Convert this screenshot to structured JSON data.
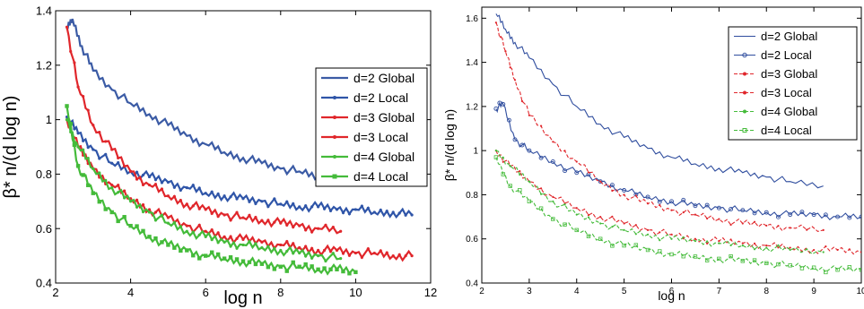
{
  "chart_data": [
    {
      "type": "line",
      "xlabel": "log n",
      "ylabel": "β* n/(d log n)",
      "xlim": [
        2,
        12
      ],
      "ylim": [
        0.4,
        1.4
      ],
      "xticks": [
        2,
        4,
        6,
        8,
        10,
        12
      ],
      "yticks": [
        0.4,
        0.6,
        0.8,
        1,
        1.2,
        1.4
      ],
      "xtick_labels": [
        "2",
        "4",
        "6",
        "8",
        "10",
        "12"
      ],
      "ytick_labels": [
        "0.4",
        "0.6",
        "0.8",
        "1",
        "1.2",
        "1.4"
      ],
      "grid": false,
      "legend_position": "top-right",
      "series": [
        {
          "name": "d=2 Global",
          "color": "#3b5ba5",
          "marker": "none",
          "points": [
            [
              2.3,
              1.33
            ],
            [
              2.45,
              1.37
            ],
            [
              2.7,
              1.27
            ],
            [
              3,
              1.18
            ],
            [
              3.5,
              1.11
            ],
            [
              4,
              1.06
            ],
            [
              4.5,
              1.02
            ],
            [
              5,
              0.98
            ],
            [
              5.5,
              0.94
            ],
            [
              6,
              0.91
            ],
            [
              6.5,
              0.88
            ],
            [
              7,
              0.86
            ],
            [
              7.5,
              0.84
            ],
            [
              8,
              0.82
            ],
            [
              8.5,
              0.81
            ],
            [
              9,
              0.79
            ],
            [
              9.6,
              0.77
            ]
          ]
        },
        {
          "name": "d=2 Local",
          "color": "#2f55a8",
          "marker": "dot",
          "points": [
            [
              2.3,
              1.01
            ],
            [
              2.6,
              0.95
            ],
            [
              3,
              0.89
            ],
            [
              3.5,
              0.84
            ],
            [
              4,
              0.81
            ],
            [
              4.5,
              0.79
            ],
            [
              5,
              0.77
            ],
            [
              5.5,
              0.75
            ],
            [
              6,
              0.73
            ],
            [
              6.5,
              0.72
            ],
            [
              7,
              0.71
            ],
            [
              7.5,
              0.7
            ],
            [
              8,
              0.69
            ],
            [
              8.5,
              0.68
            ],
            [
              9,
              0.68
            ],
            [
              9.5,
              0.67
            ],
            [
              10,
              0.67
            ],
            [
              10.5,
              0.66
            ],
            [
              11,
              0.66
            ],
            [
              11.5,
              0.65
            ]
          ]
        },
        {
          "name": "d=3 Global",
          "color": "#e0262b",
          "marker": "dot",
          "points": [
            [
              2.3,
              1.34
            ],
            [
              2.6,
              1.12
            ],
            [
              3,
              0.98
            ],
            [
              3.5,
              0.89
            ],
            [
              4,
              0.81
            ],
            [
              4.5,
              0.76
            ],
            [
              5,
              0.72
            ],
            [
              5.5,
              0.69
            ],
            [
              6,
              0.67
            ],
            [
              6.5,
              0.65
            ],
            [
              7,
              0.64
            ],
            [
              7.5,
              0.63
            ],
            [
              8,
              0.62
            ],
            [
              8.5,
              0.61
            ],
            [
              9,
              0.6
            ],
            [
              9.6,
              0.59
            ]
          ]
        },
        {
          "name": "d=3 Local",
          "color": "#e0262b",
          "marker": "dot",
          "points": [
            [
              2.3,
              1.0
            ],
            [
              2.6,
              0.9
            ],
            [
              3,
              0.82
            ],
            [
              3.5,
              0.76
            ],
            [
              4,
              0.71
            ],
            [
              4.5,
              0.67
            ],
            [
              5,
              0.64
            ],
            [
              5.5,
              0.61
            ],
            [
              6,
              0.59
            ],
            [
              6.5,
              0.57
            ],
            [
              7,
              0.56
            ],
            [
              7.5,
              0.55
            ],
            [
              8,
              0.54
            ],
            [
              8.5,
              0.53
            ],
            [
              9,
              0.52
            ],
            [
              9.5,
              0.52
            ],
            [
              10,
              0.51
            ],
            [
              10.5,
              0.51
            ],
            [
              11,
              0.5
            ],
            [
              11.5,
              0.5
            ]
          ]
        },
        {
          "name": "d=4 Global",
          "color": "#44bb3a",
          "marker": "dot",
          "points": [
            [
              2.3,
              1.0
            ],
            [
              2.6,
              0.9
            ],
            [
              3,
              0.82
            ],
            [
              3.5,
              0.75
            ],
            [
              4,
              0.7
            ],
            [
              4.5,
              0.66
            ],
            [
              5,
              0.62
            ],
            [
              5.5,
              0.59
            ],
            [
              6,
              0.57
            ],
            [
              6.5,
              0.55
            ],
            [
              7,
              0.54
            ],
            [
              7.5,
              0.53
            ],
            [
              8,
              0.52
            ],
            [
              8.5,
              0.51
            ],
            [
              9,
              0.5
            ],
            [
              9.6,
              0.49
            ]
          ]
        },
        {
          "name": "d=4 Local",
          "color": "#44bb3a",
          "marker": "square",
          "points": [
            [
              2.3,
              1.05
            ],
            [
              2.6,
              0.83
            ],
            [
              3,
              0.73
            ],
            [
              3.5,
              0.66
            ],
            [
              4,
              0.61
            ],
            [
              4.5,
              0.57
            ],
            [
              5,
              0.54
            ],
            [
              5.5,
              0.52
            ],
            [
              6,
              0.5
            ],
            [
              6.5,
              0.49
            ],
            [
              7,
              0.48
            ],
            [
              7.5,
              0.47
            ],
            [
              8,
              0.46
            ],
            [
              8.5,
              0.46
            ],
            [
              9,
              0.45
            ],
            [
              9.5,
              0.45
            ],
            [
              10,
              0.44
            ]
          ]
        }
      ]
    },
    {
      "type": "line",
      "xlabel": "log n",
      "ylabel": "β* n/(d log n)",
      "xlim": [
        2,
        10
      ],
      "ylim": [
        0.4,
        1.65
      ],
      "xticks": [
        2,
        3,
        4,
        5,
        6,
        7,
        8,
        9,
        10
      ],
      "yticks": [
        0.4,
        0.6,
        0.8,
        1,
        1.2,
        1.4,
        1.6
      ],
      "xtick_labels": [
        "2",
        "3",
        "4",
        "5",
        "6",
        "7",
        "8",
        "9",
        "10"
      ],
      "ytick_labels": [
        "0.4",
        "0.6",
        "0.8",
        "1",
        "1.2",
        "1.4",
        "1.6"
      ],
      "grid": false,
      "legend_position": "top-right",
      "series": [
        {
          "name": "d=2 Global",
          "color": "#2f4d9e",
          "marker": "none",
          "dash": "none",
          "points": [
            [
              2.3,
              1.62
            ],
            [
              2.5,
              1.55
            ],
            [
              2.7,
              1.49
            ],
            [
              3,
              1.42
            ],
            [
              3.5,
              1.3
            ],
            [
              4,
              1.2
            ],
            [
              4.5,
              1.12
            ],
            [
              5,
              1.06
            ],
            [
              5.5,
              1.01
            ],
            [
              6,
              0.97
            ],
            [
              6.5,
              0.94
            ],
            [
              7,
              0.92
            ],
            [
              7.5,
              0.9
            ],
            [
              8,
              0.88
            ],
            [
              8.5,
              0.86
            ],
            [
              9.2,
              0.84
            ]
          ]
        },
        {
          "name": "d=2 Local",
          "color": "#2f4d9e",
          "marker": "circle",
          "dash": "none",
          "points": [
            [
              2.3,
              1.19
            ],
            [
              2.45,
              1.21
            ],
            [
              2.7,
              1.05
            ],
            [
              3,
              1.0
            ],
            [
              3.5,
              0.95
            ],
            [
              4,
              0.9
            ],
            [
              4.5,
              0.86
            ],
            [
              5,
              0.82
            ],
            [
              5.5,
              0.79
            ],
            [
              6,
              0.77
            ],
            [
              6.5,
              0.75
            ],
            [
              7,
              0.74
            ],
            [
              7.5,
              0.73
            ],
            [
              8,
              0.72
            ],
            [
              8.5,
              0.71
            ],
            [
              9,
              0.71
            ],
            [
              9.5,
              0.7
            ],
            [
              10,
              0.7
            ]
          ]
        },
        {
          "name": "d=3 Global",
          "color": "#e0262b",
          "marker": "dot",
          "dash": "4,2",
          "points": [
            [
              2.3,
              1.58
            ],
            [
              2.5,
              1.45
            ],
            [
              2.7,
              1.32
            ],
            [
              3,
              1.16
            ],
            [
              3.5,
              1.04
            ],
            [
              4,
              0.95
            ],
            [
              4.5,
              0.86
            ],
            [
              5,
              0.8
            ],
            [
              5.5,
              0.76
            ],
            [
              6,
              0.73
            ],
            [
              6.5,
              0.71
            ],
            [
              7,
              0.69
            ],
            [
              7.5,
              0.67
            ],
            [
              8,
              0.66
            ],
            [
              8.5,
              0.65
            ],
            [
              9.2,
              0.64
            ]
          ]
        },
        {
          "name": "d=3 Local",
          "color": "#e0262b",
          "marker": "dot",
          "dash": "4,2",
          "points": [
            [
              2.3,
              1.0
            ],
            [
              2.6,
              0.93
            ],
            [
              3,
              0.86
            ],
            [
              3.5,
              0.79
            ],
            [
              4,
              0.74
            ],
            [
              4.5,
              0.7
            ],
            [
              5,
              0.67
            ],
            [
              5.5,
              0.64
            ],
            [
              6,
              0.62
            ],
            [
              6.5,
              0.6
            ],
            [
              7,
              0.59
            ],
            [
              7.5,
              0.58
            ],
            [
              8,
              0.57
            ],
            [
              8.5,
              0.56
            ],
            [
              9,
              0.55
            ],
            [
              9.5,
              0.55
            ],
            [
              10,
              0.54
            ]
          ]
        },
        {
          "name": "d=4 Global",
          "color": "#44bb3a",
          "marker": "dot",
          "dash": "4,2",
          "points": [
            [
              2.3,
              1.0
            ],
            [
              2.6,
              0.93
            ],
            [
              3,
              0.86
            ],
            [
              3.5,
              0.77
            ],
            [
              4,
              0.71
            ],
            [
              4.5,
              0.67
            ],
            [
              5,
              0.64
            ],
            [
              5.5,
              0.62
            ],
            [
              6,
              0.6
            ],
            [
              6.5,
              0.59
            ],
            [
              7,
              0.58
            ],
            [
              7.5,
              0.57
            ],
            [
              8,
              0.56
            ],
            [
              8.5,
              0.55
            ],
            [
              9.2,
              0.54
            ]
          ]
        },
        {
          "name": "d=4 Local",
          "color": "#44bb3a",
          "marker": "square-open",
          "dash": "4,2",
          "points": [
            [
              2.3,
              0.97
            ],
            [
              2.6,
              0.84
            ],
            [
              3,
              0.77
            ],
            [
              3.5,
              0.69
            ],
            [
              4,
              0.64
            ],
            [
              4.5,
              0.6
            ],
            [
              5,
              0.57
            ],
            [
              5.5,
              0.55
            ],
            [
              6,
              0.53
            ],
            [
              6.5,
              0.52
            ],
            [
              7,
              0.51
            ],
            [
              7.5,
              0.5
            ],
            [
              8,
              0.49
            ],
            [
              8.5,
              0.48
            ],
            [
              9,
              0.47
            ],
            [
              9.5,
              0.46
            ],
            [
              10,
              0.46
            ]
          ]
        }
      ]
    }
  ]
}
